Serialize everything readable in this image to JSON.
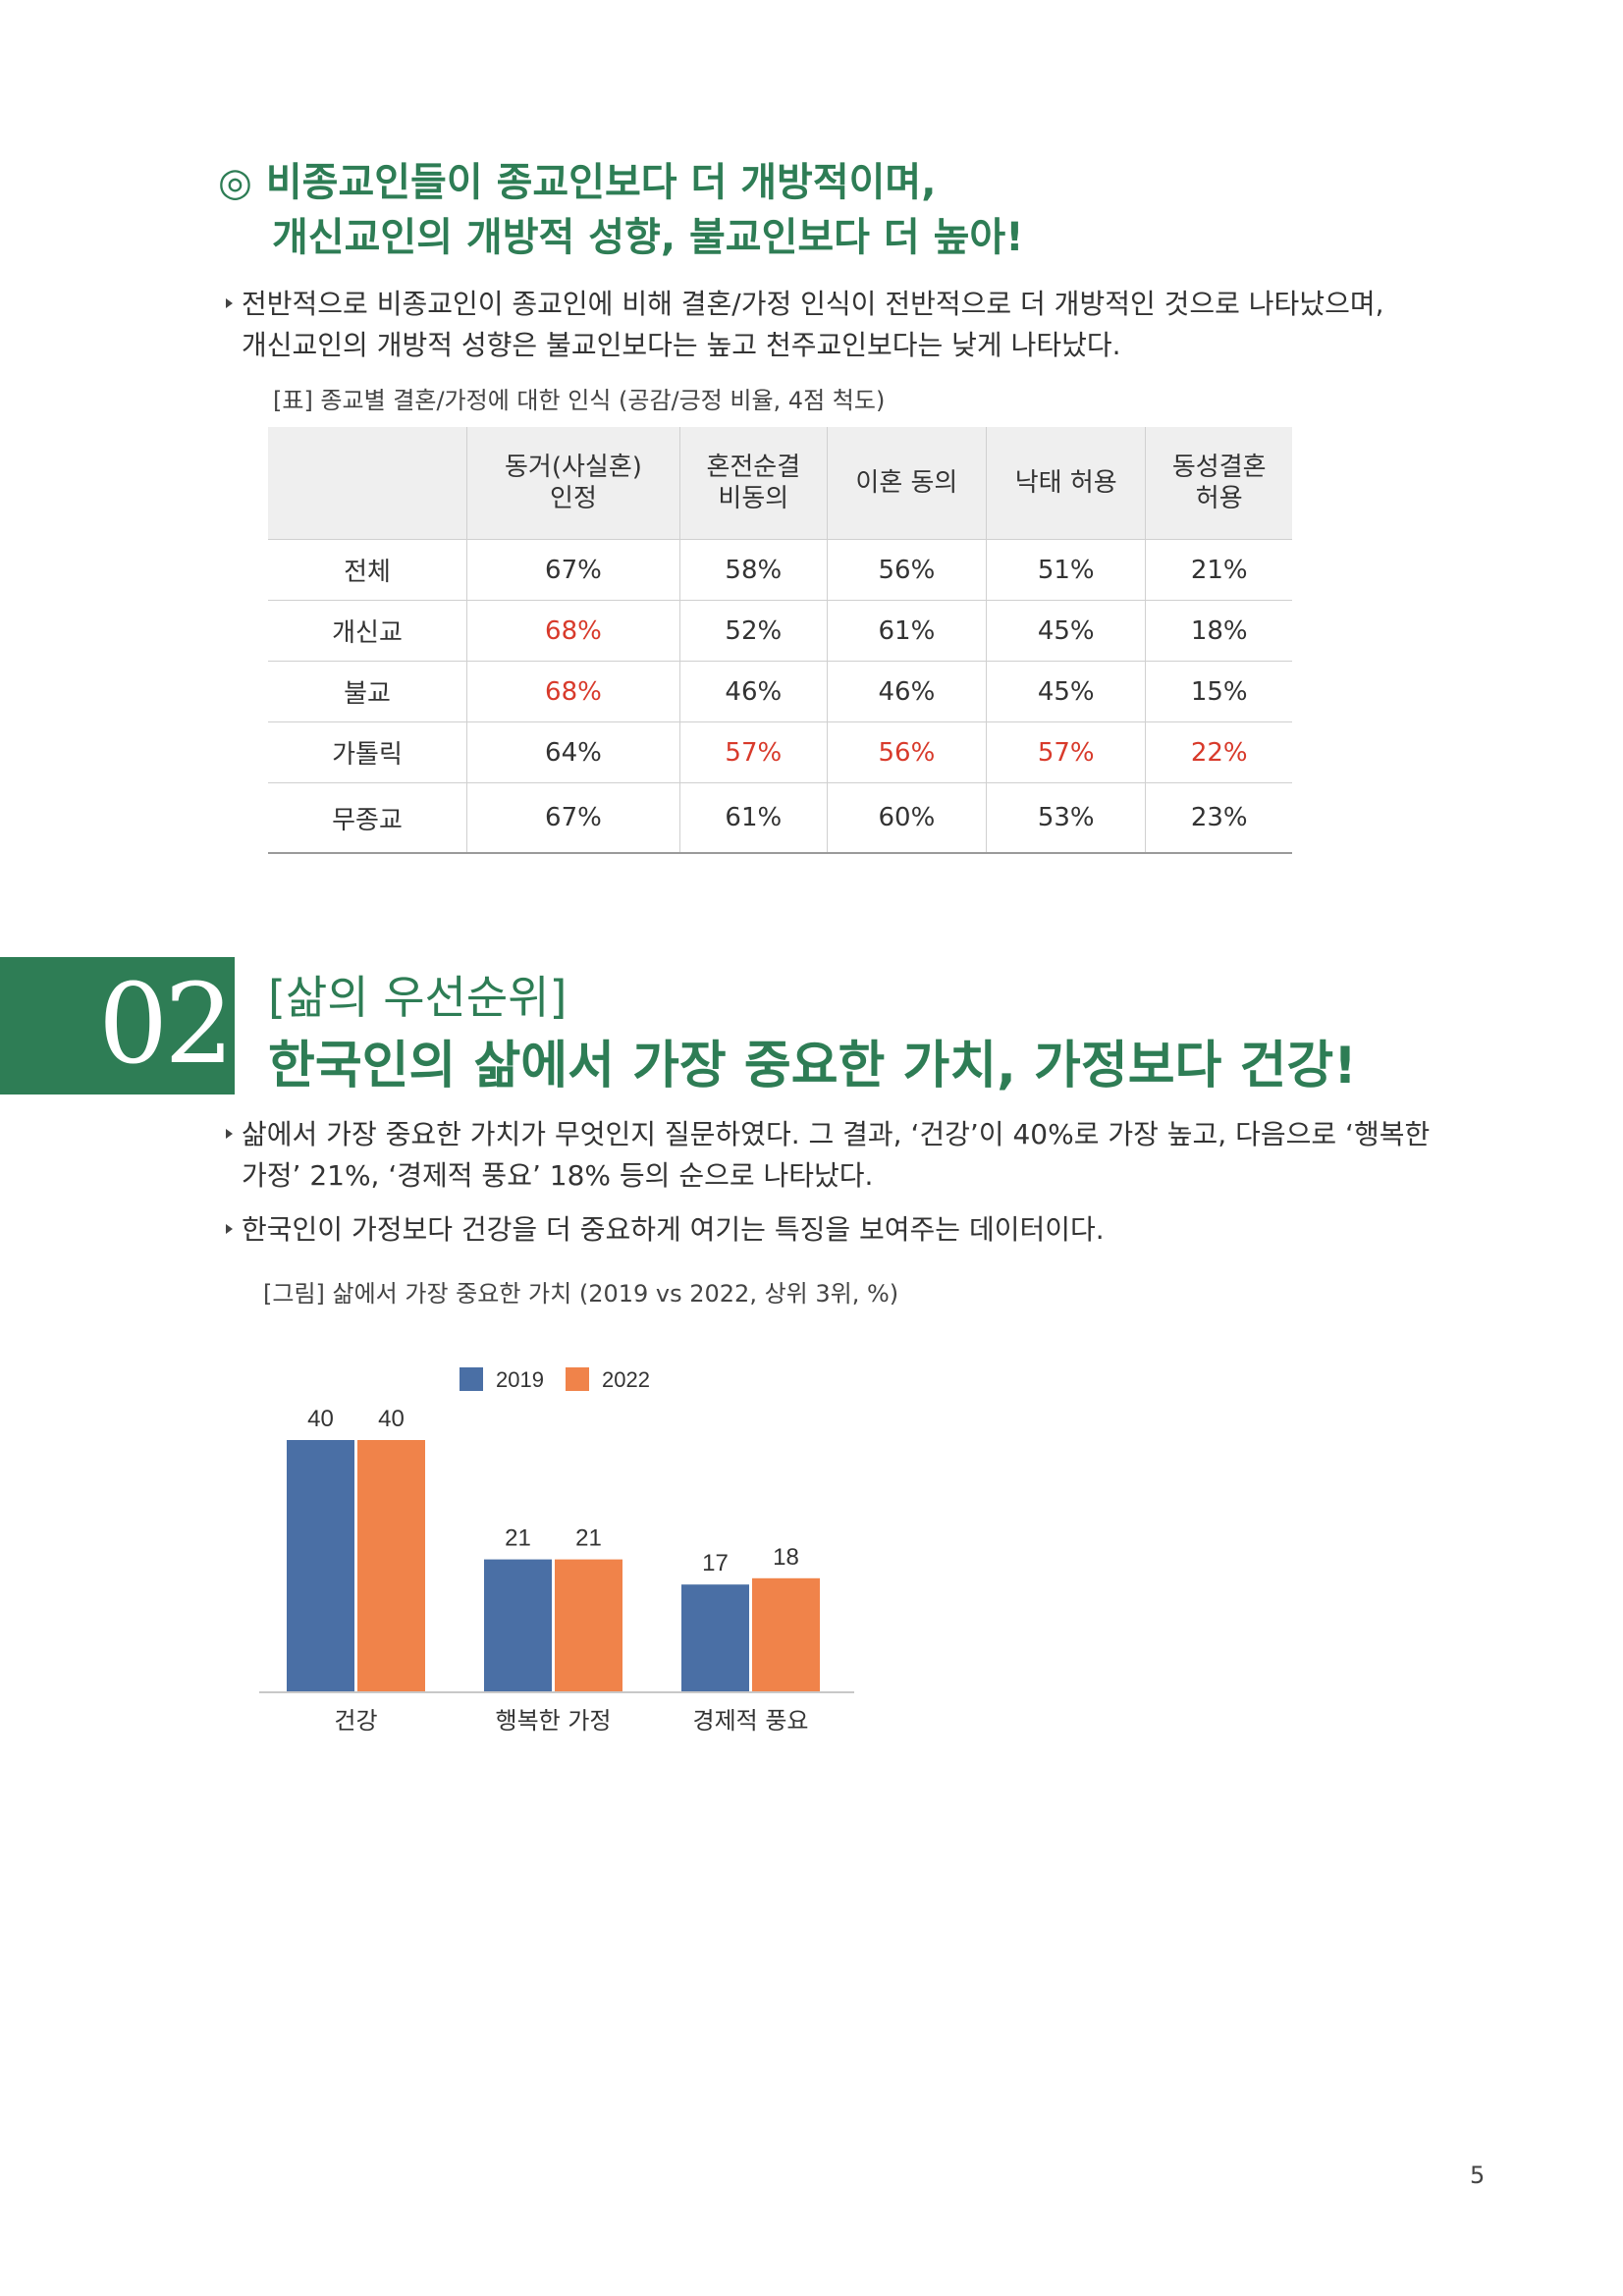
{
  "heading1": {
    "marker": "◎",
    "line1": "비종교인들이 종교인보다 더 개방적이며,",
    "line2": "개신교인의 개방적 성향, 불교인보다 더 높아!"
  },
  "bullets1": [
    "전반적으로 비종교인이 종교인에 비해 결혼/가정 인식이 전반적으로 더 개방적인 것으로 나타났으며,",
    "개신교인의 개방적 성향은 불교인보다는 높고 천주교인보다는 낮게 나타났다."
  ],
  "table_caption": "[표] 종교별 결혼/가정에 대한 인식 (공감/긍정 비율, 4점 척도)",
  "table": {
    "headers": [
      "",
      "동거(사실혼)\n인정",
      "혼전순결\n비동의",
      "이혼 동의",
      "낙태 허용",
      "동성결혼\n허용"
    ],
    "rows": [
      {
        "label": "전체",
        "cells": [
          "67%",
          "58%",
          "56%",
          "51%",
          "21%"
        ],
        "hl": [
          false,
          false,
          false,
          false,
          false
        ]
      },
      {
        "label": "개신교",
        "cells": [
          "68%",
          "52%",
          "61%",
          "45%",
          "18%"
        ],
        "hl": [
          true,
          false,
          false,
          false,
          false
        ]
      },
      {
        "label": "불교",
        "cells": [
          "68%",
          "46%",
          "46%",
          "45%",
          "15%"
        ],
        "hl": [
          true,
          false,
          false,
          false,
          false
        ]
      },
      {
        "label": "가톨릭",
        "cells": [
          "64%",
          "57%",
          "56%",
          "57%",
          "22%"
        ],
        "hl": [
          false,
          true,
          true,
          true,
          true
        ]
      },
      {
        "label": "무종교",
        "cells": [
          "67%",
          "61%",
          "60%",
          "53%",
          "23%"
        ],
        "hl": [
          false,
          false,
          false,
          false,
          false
        ]
      }
    ]
  },
  "section2": {
    "number": "02",
    "subtitle": "[삶의 우선순위]",
    "title": "한국인의 삶에서 가장 중요한 가치, 가정보다 건강!"
  },
  "bullets2": [
    "삶에서 가장 중요한 가치가 무엇인지 질문하였다. 그 결과, ‘건강’이 40%로 가장 높고, 다음으로 ‘행복한",
    "가정’ 21%, ‘경제적 풍요’ 18% 등의 순으로 나타났다.",
    "한국인이 가정보다 건강을 더 중요하게 여기는 특징을 보여주는 데이터이다."
  ],
  "chart_caption": "[그림] 삶에서 가장 중요한 가치 (2019 vs 2022, 상위 3위, %)",
  "colors": {
    "accent": "#2e7d55",
    "highlight": "#d83a2b",
    "series2019": "#4a6fa5",
    "series2022": "#f0834a"
  },
  "chart_data": {
    "type": "bar",
    "title": "",
    "xlabel": "",
    "ylabel": "",
    "categories": [
      "건강",
      "행복한 가정",
      "경제적 풍요"
    ],
    "series": [
      {
        "name": "2019",
        "values": [
          40,
          21,
          17
        ]
      },
      {
        "name": "2022",
        "values": [
          40,
          21,
          18
        ]
      }
    ],
    "ylim": [
      0,
      40
    ],
    "legend": "top",
    "grid": false
  },
  "page_number": "5"
}
